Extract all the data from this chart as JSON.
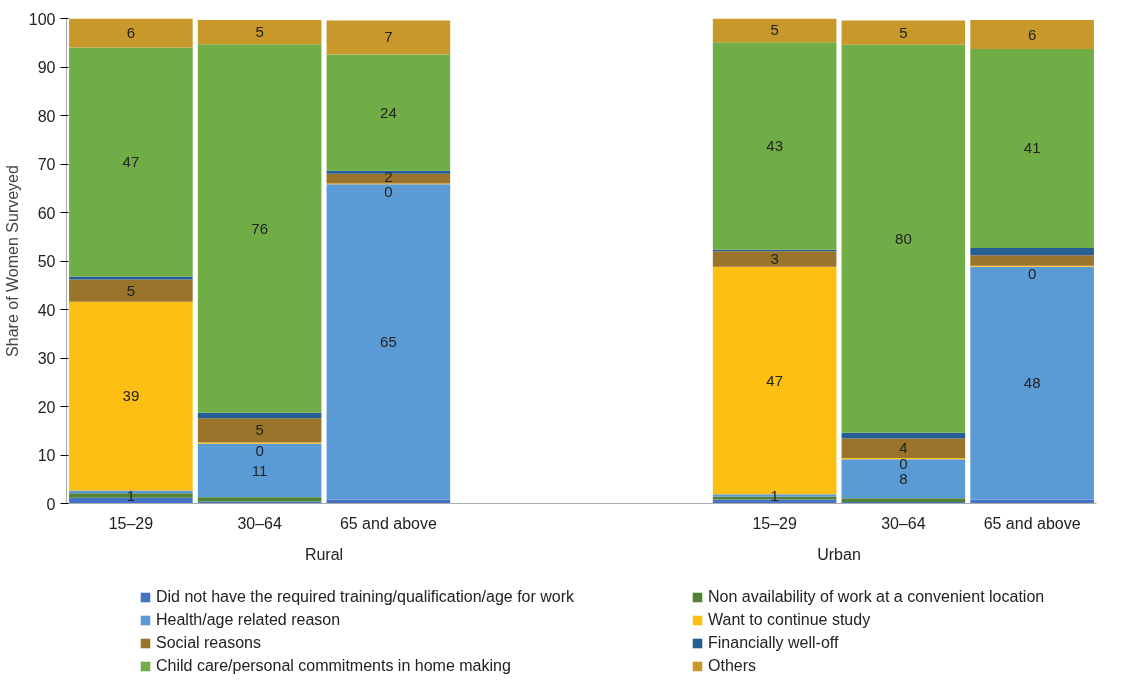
{
  "chart_data": {
    "type": "bar",
    "stacked": true,
    "ylabel": "Share of Women Surveyed",
    "categories": [
      "15–29",
      "30–64",
      "65 and above",
      null,
      null,
      "15–29",
      "30–64",
      "65 and above"
    ],
    "annotations": [
      "Rural",
      "Urban"
    ],
    "ylim": [
      0,
      100
    ],
    "yticks": [
      0,
      10,
      20,
      30,
      40,
      50,
      60,
      70,
      80,
      90,
      100
    ],
    "legend": "bottom",
    "series": [
      {
        "name": "Did not have the required training/qualification/age for work",
        "color": "#4472c4",
        "values": [
          1.2,
          0.4,
          0.8,
          null,
          null,
          0.8,
          0.3,
          0.8
        ],
        "value_labels": [
          null,
          null,
          null,
          null,
          null,
          null,
          null,
          null
        ]
      },
      {
        "name": "Non availability of work at a convenient location",
        "color": "#548235",
        "values": [
          0.9,
          0.9,
          0,
          null,
          null,
          0.6,
          0.8,
          0
        ],
        "value_labels": [
          "1",
          null,
          null,
          null,
          null,
          "1",
          null,
          null
        ]
      },
      {
        "name": "Health/age related reason",
        "color": "#5b9bd5",
        "values": [
          0.6,
          11,
          65,
          null,
          null,
          0.5,
          8,
          48
        ],
        "value_labels": [
          null,
          "11",
          "65",
          null,
          null,
          null,
          "8",
          "48"
        ]
      },
      {
        "name": "Want to continue study",
        "color": "#fcbf12",
        "values": [
          38.9,
          0.3,
          0.2,
          null,
          null,
          46.9,
          0.3,
          0.2
        ],
        "value_labels": [
          "39",
          "0",
          "0",
          null,
          null,
          "47",
          "0",
          "0"
        ]
      },
      {
        "name": "Social reasons",
        "color": "#9a742b",
        "values": [
          4.6,
          5,
          2,
          null,
          null,
          3.2,
          4,
          2.2
        ],
        "value_labels": [
          "5",
          "5",
          "2",
          null,
          null,
          "3",
          "4",
          null
        ]
      },
      {
        "name": "Financially well-off",
        "color": "#255e91",
        "values": [
          0.6,
          1.1,
          0.6,
          null,
          null,
          0.3,
          1.2,
          1.5
        ],
        "value_labels": [
          null,
          null,
          null,
          null,
          null,
          null,
          null,
          null
        ]
      },
      {
        "name": "Child care/personal commitments in home making",
        "color": "#70ad47",
        "values": [
          47.2,
          76,
          24,
          null,
          null,
          42.8,
          80,
          41
        ],
        "value_labels": [
          "47",
          "76",
          "24",
          null,
          null,
          "43",
          "80",
          "41"
        ]
      },
      {
        "name": "Others",
        "color": "#c9982a",
        "values": [
          6,
          5,
          7,
          null,
          null,
          4.9,
          5,
          6
        ],
        "value_labels": [
          "6",
          "5",
          "7",
          null,
          null,
          "5",
          "5",
          "6"
        ]
      }
    ]
  }
}
